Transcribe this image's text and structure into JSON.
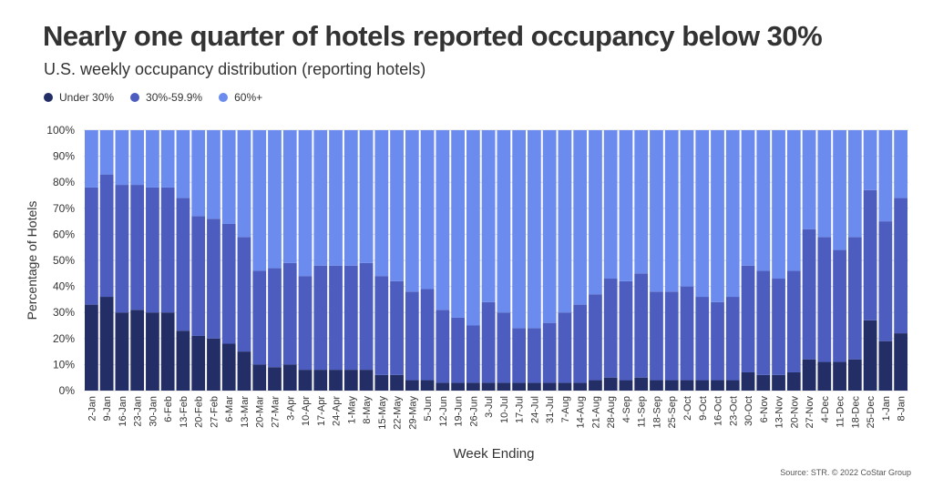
{
  "title": "Nearly one quarter of hotels reported occupancy below 30%",
  "subtitle": "U.S. weekly occupancy distribution (reporting hotels)",
  "source": "Source: STR. © 2022 CoStar Group",
  "colors": {
    "under30": "#232d66",
    "mid": "#4c5dbf",
    "top": "#6b8bef",
    "text": "#333333",
    "grid": "#dddddd"
  },
  "chart_data": {
    "type": "bar",
    "stacked": true,
    "xlabel": "Week Ending",
    "ylabel": "Percentage of Hotels",
    "ylim": [
      0,
      100
    ],
    "yticks": [
      "0%",
      "10%",
      "20%",
      "30%",
      "40%",
      "50%",
      "60%",
      "70%",
      "80%",
      "90%",
      "100%"
    ],
    "legend_position": "top-left",
    "categories": [
      "2-Jan",
      "9-Jan",
      "16-Jan",
      "23-Jan",
      "30-Jan",
      "6-Feb",
      "13-Feb",
      "20-Feb",
      "27-Feb",
      "6-Mar",
      "13-Mar",
      "20-Mar",
      "27-Mar",
      "3-Apr",
      "10-Apr",
      "17-Apr",
      "24-Apr",
      "1-May",
      "8-May",
      "15-May",
      "22-May",
      "29-May",
      "5-Jun",
      "12-Jun",
      "19-Jun",
      "26-Jun",
      "3-Jul",
      "10-Jul",
      "17-Jul",
      "24-Jul",
      "31-Jul",
      "7-Aug",
      "14-Aug",
      "21-Aug",
      "28-Aug",
      "4-Sep",
      "11-Sep",
      "18-Sep",
      "25-Sep",
      "2-Oct",
      "9-Oct",
      "16-Oct",
      "23-Oct",
      "30-Oct",
      "6-Nov",
      "13-Nov",
      "20-Nov",
      "27-Nov",
      "4-Dec",
      "11-Dec",
      "18-Dec",
      "25-Dec",
      "1-Jan",
      "8-Jan"
    ],
    "series": [
      {
        "name": "Under 30%",
        "values": [
          33,
          36,
          30,
          31,
          30,
          30,
          23,
          21,
          20,
          18,
          15,
          10,
          9,
          10,
          8,
          8,
          8,
          8,
          8,
          6,
          6,
          4,
          4,
          3,
          3,
          3,
          3,
          3,
          3,
          3,
          3,
          3,
          3,
          4,
          5,
          4,
          5,
          4,
          4,
          4,
          4,
          4,
          4,
          7,
          6,
          6,
          7,
          12,
          11,
          11,
          12,
          27,
          19,
          22
        ]
      },
      {
        "name": "30%-59.9%",
        "values": [
          45,
          47,
          49,
          48,
          48,
          48,
          51,
          46,
          46,
          46,
          44,
          36,
          38,
          39,
          36,
          40,
          40,
          40,
          41,
          38,
          36,
          34,
          35,
          28,
          25,
          22,
          31,
          27,
          21,
          21,
          23,
          27,
          30,
          33,
          38,
          38,
          40,
          34,
          34,
          36,
          32,
          30,
          32,
          41,
          40,
          37,
          39,
          50,
          48,
          43,
          47,
          50,
          46,
          52
        ]
      },
      {
        "name": "60%+",
        "values": [
          22,
          17,
          21,
          21,
          22,
          22,
          26,
          33,
          34,
          36,
          41,
          54,
          53,
          51,
          56,
          52,
          52,
          52,
          51,
          56,
          58,
          62,
          61,
          69,
          72,
          75,
          66,
          70,
          76,
          76,
          74,
          70,
          67,
          63,
          57,
          58,
          55,
          62,
          62,
          60,
          64,
          66,
          64,
          52,
          54,
          57,
          54,
          38,
          41,
          46,
          41,
          23,
          35,
          26
        ]
      }
    ]
  }
}
